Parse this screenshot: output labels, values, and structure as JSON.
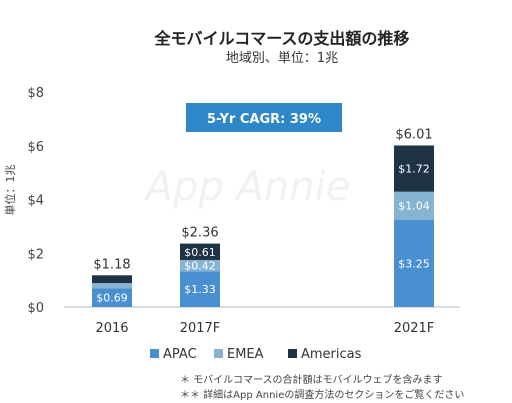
{
  "chart_data": {
    "type": "bar",
    "stacked": true,
    "title": "全モバイルコマースの支出額の推移",
    "subtitle": "地域別、単位：1兆",
    "ylabel": "単位：1兆",
    "ylim": [
      0,
      8
    ],
    "yticks": [
      "$0",
      "$2",
      "$4",
      "$6",
      "$8"
    ],
    "ytick_values": [
      0,
      2,
      4,
      6,
      8
    ],
    "categories": [
      "2016",
      "2017F",
      "2021F"
    ],
    "series": [
      {
        "name": "APAC",
        "values": [
          0.69,
          1.33,
          3.25
        ],
        "labels": [
          "$0.69",
          "$1.33",
          "$3.25"
        ],
        "color": "#4a90d0"
      },
      {
        "name": "EMEA",
        "values": [
          0.2,
          0.42,
          1.04
        ],
        "labels": [
          "",
          "$0.42",
          "$1.04"
        ],
        "color": "#86b3d1"
      },
      {
        "name": "Americas",
        "values": [
          0.29,
          0.61,
          1.72
        ],
        "labels": [
          "",
          "$0.61",
          "$1.72"
        ],
        "color": "#1e3346"
      }
    ],
    "totals": [
      "$1.18",
      "$2.36",
      "$6.01"
    ],
    "annotation": "5-Yr CAGR: 39%",
    "annotation_color": "#2e87c8",
    "watermark": "App Annie",
    "legend_position": "bottom",
    "grid": false,
    "footnotes": [
      "＊ モバイルコマースの合計額はモバイルウェブを含みます",
      "＊＊ 詳細はApp Annieの調査方法のセクションをご覧ください"
    ]
  }
}
